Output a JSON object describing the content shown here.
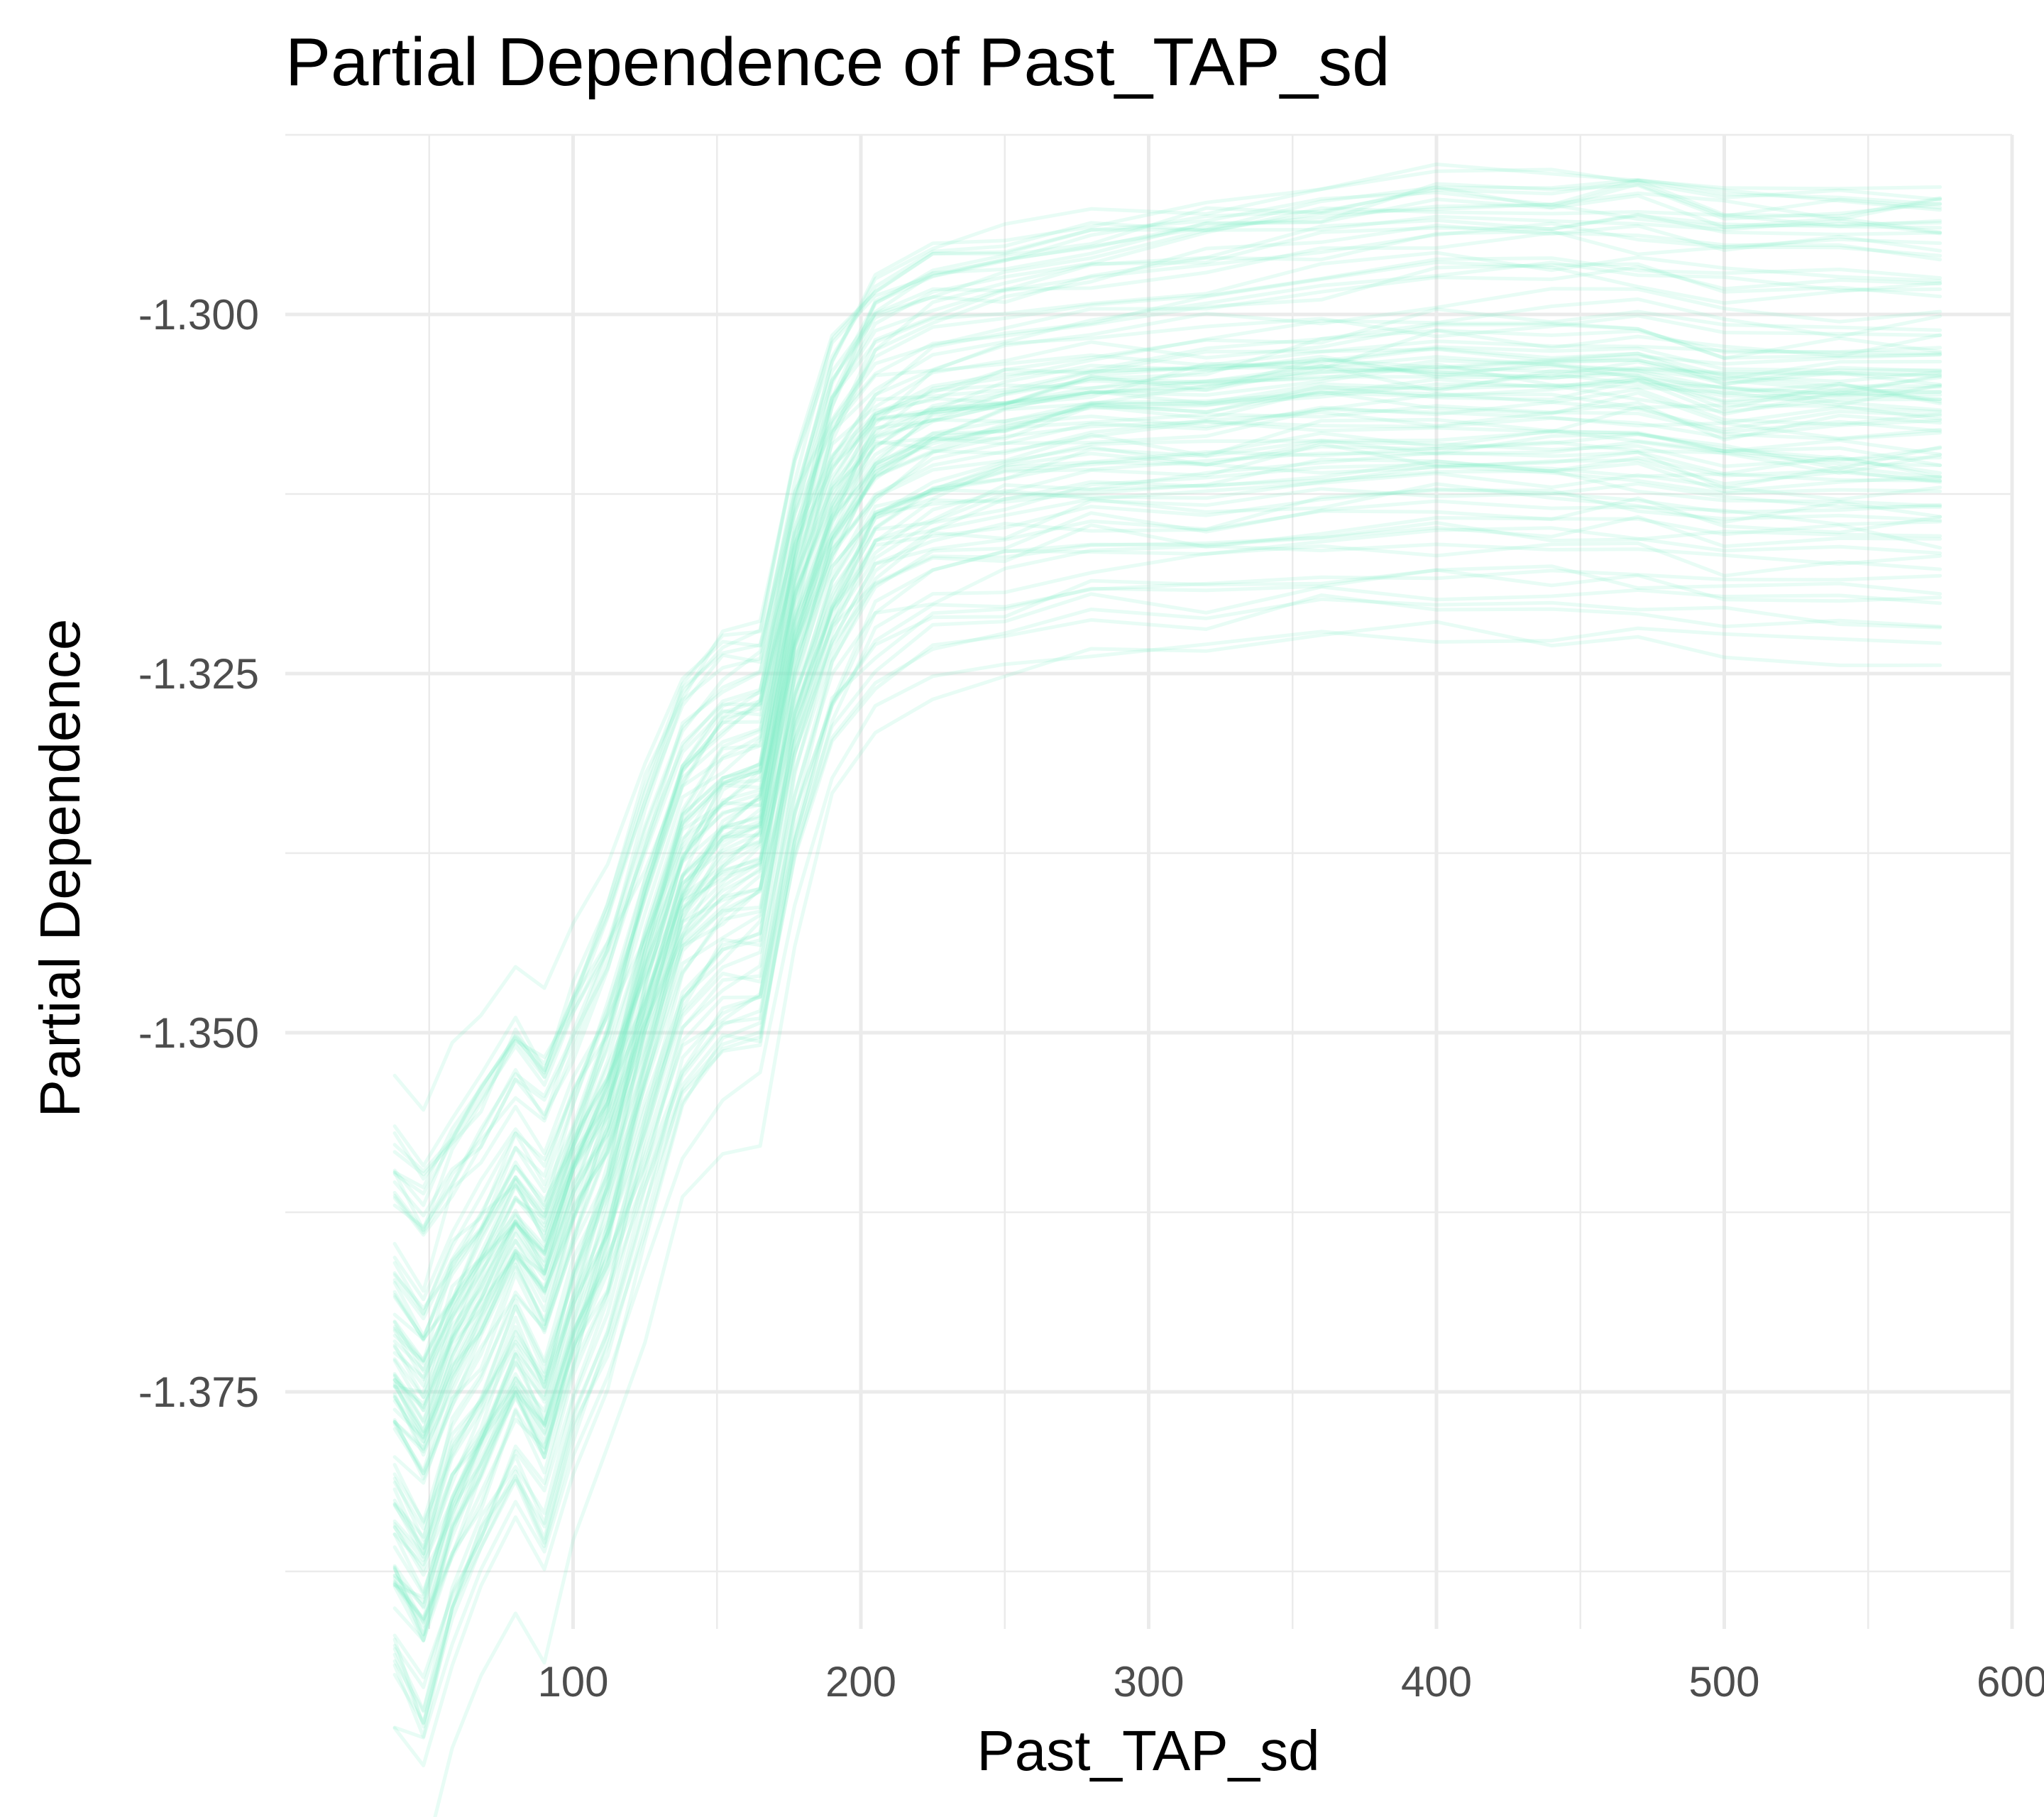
{
  "chart_data": {
    "type": "line",
    "title": "Partial Dependence of Past_TAP_sd",
    "xlabel": "Past_TAP_sd",
    "ylabel": "Partial Dependence",
    "xlim": [
      0,
      600
    ],
    "ylim": [
      -1.3915,
      -1.2875
    ],
    "x_ticks": [
      100,
      200,
      300,
      400,
      500,
      600
    ],
    "x_tick_labels": [
      "100",
      "200",
      "300",
      "400",
      "500",
      "600"
    ],
    "y_ticks": [
      -1.375,
      -1.35,
      -1.325,
      -1.3
    ],
    "y_tick_labels": [
      "-1.375",
      "-1.350",
      "-1.325",
      "-1.300"
    ],
    "grid": true,
    "legend": "none",
    "line_color": "#7ff0c8",
    "line_opacity": 0.18,
    "n_lines": 100,
    "x": [
      38,
      48,
      58,
      68,
      80,
      90,
      100,
      112,
      125,
      138,
      152,
      165,
      177,
      190,
      205,
      225,
      250,
      280,
      320,
      360,
      400,
      440,
      470,
      500,
      540,
      575
    ],
    "series": [
      {
        "values": [
          -1.3735,
          -1.3765,
          -1.3715,
          -1.3685,
          -1.3635,
          -1.3665,
          -1.3605,
          -1.3545,
          -1.3455,
          -1.3375,
          -1.3345,
          -1.3335,
          -1.3215,
          -1.3145,
          -1.3095,
          -1.3075,
          -1.3065,
          -1.3055,
          -1.3055,
          -1.3045,
          -1.3045,
          -1.3045,
          -1.3045,
          -1.3055,
          -1.3055,
          -1.3055
        ]
      },
      {
        "values": [
          -1.3705,
          -1.3735,
          -1.3695,
          -1.3665,
          -1.3615,
          -1.3645,
          -1.3585,
          -1.3515,
          -1.3415,
          -1.3335,
          -1.3295,
          -1.3285,
          -1.3155,
          -1.3065,
          -1.3015,
          -1.2995,
          -1.2985,
          -1.2975,
          -1.2965,
          -1.2955,
          -1.2945,
          -1.2945,
          -1.2945,
          -1.2955,
          -1.2955,
          -1.2955
        ]
      },
      {
        "values": [
          -1.3775,
          -1.3805,
          -1.3745,
          -1.3705,
          -1.3665,
          -1.3695,
          -1.3635,
          -1.3585,
          -1.3505,
          -1.3425,
          -1.3395,
          -1.3385,
          -1.3265,
          -1.3185,
          -1.3135,
          -1.3115,
          -1.3105,
          -1.3095,
          -1.3095,
          -1.3085,
          -1.3085,
          -1.3085,
          -1.3085,
          -1.3095,
          -1.3095,
          -1.3095
        ]
      },
      {
        "values": [
          -1.3805,
          -1.3845,
          -1.3775,
          -1.3735,
          -1.3695,
          -1.3725,
          -1.3665,
          -1.3615,
          -1.3535,
          -1.3465,
          -1.3435,
          -1.3425,
          -1.3305,
          -1.3225,
          -1.3175,
          -1.3155,
          -1.3145,
          -1.3135,
          -1.3135,
          -1.3125,
          -1.3125,
          -1.3125,
          -1.3125,
          -1.3135,
          -1.3135,
          -1.3135
        ]
      },
      {
        "values": [
          -1.3725,
          -1.3755,
          -1.3705,
          -1.3675,
          -1.3625,
          -1.3655,
          -1.3595,
          -1.3525,
          -1.3425,
          -1.3345,
          -1.3305,
          -1.3295,
          -1.3175,
          -1.3105,
          -1.3065,
          -1.3045,
          -1.3035,
          -1.3025,
          -1.3015,
          -1.3005,
          -1.2995,
          -1.2995,
          -1.2995,
          -1.3005,
          -1.3005,
          -1.3005
        ]
      },
      {
        "values": [
          -1.3755,
          -1.3785,
          -1.3735,
          -1.3695,
          -1.3645,
          -1.3675,
          -1.3615,
          -1.3555,
          -1.3465,
          -1.3385,
          -1.3355,
          -1.3345,
          -1.3225,
          -1.3145,
          -1.3095,
          -1.3085,
          -1.3075,
          -1.3065,
          -1.3065,
          -1.3055,
          -1.3055,
          -1.3055,
          -1.3055,
          -1.3065,
          -1.3065,
          -1.3065
        ]
      },
      {
        "values": [
          -1.3795,
          -1.3825,
          -1.3765,
          -1.3725,
          -1.3685,
          -1.3715,
          -1.3655,
          -1.3605,
          -1.3525,
          -1.3445,
          -1.3415,
          -1.3405,
          -1.3285,
          -1.3205,
          -1.3155,
          -1.3135,
          -1.3125,
          -1.3115,
          -1.3115,
          -1.3105,
          -1.3105,
          -1.3105,
          -1.3105,
          -1.3115,
          -1.3115,
          -1.3115
        ]
      },
      {
        "values": [
          -1.3695,
          -1.3725,
          -1.3685,
          -1.3655,
          -1.3605,
          -1.3635,
          -1.3575,
          -1.3505,
          -1.3405,
          -1.3325,
          -1.3285,
          -1.3275,
          -1.3145,
          -1.3045,
          -1.2995,
          -1.2975,
          -1.2965,
          -1.2955,
          -1.2945,
          -1.2935,
          -1.2925,
          -1.2925,
          -1.2925,
          -1.2935,
          -1.2935,
          -1.2935
        ]
      },
      {
        "values": [
          -1.3845,
          -1.3865,
          -1.3795,
          -1.3755,
          -1.3715,
          -1.3745,
          -1.3685,
          -1.3635,
          -1.3565,
          -1.3495,
          -1.3465,
          -1.3455,
          -1.3345,
          -1.3265,
          -1.3225,
          -1.3205,
          -1.3195,
          -1.3185,
          -1.3185,
          -1.3175,
          -1.3175,
          -1.3175,
          -1.3175,
          -1.3185,
          -1.3185,
          -1.3185
        ]
      },
      {
        "values": [
          -1.3745,
          -1.3775,
          -1.3725,
          -1.3685,
          -1.3635,
          -1.3665,
          -1.3605,
          -1.3545,
          -1.3455,
          -1.3365,
          -1.3335,
          -1.3325,
          -1.3205,
          -1.3125,
          -1.3085,
          -1.3065,
          -1.3055,
          -1.3045,
          -1.3045,
          -1.3035,
          -1.3035,
          -1.3035,
          -1.3035,
          -1.3045,
          -1.3045,
          -1.3045
        ]
      }
    ]
  }
}
